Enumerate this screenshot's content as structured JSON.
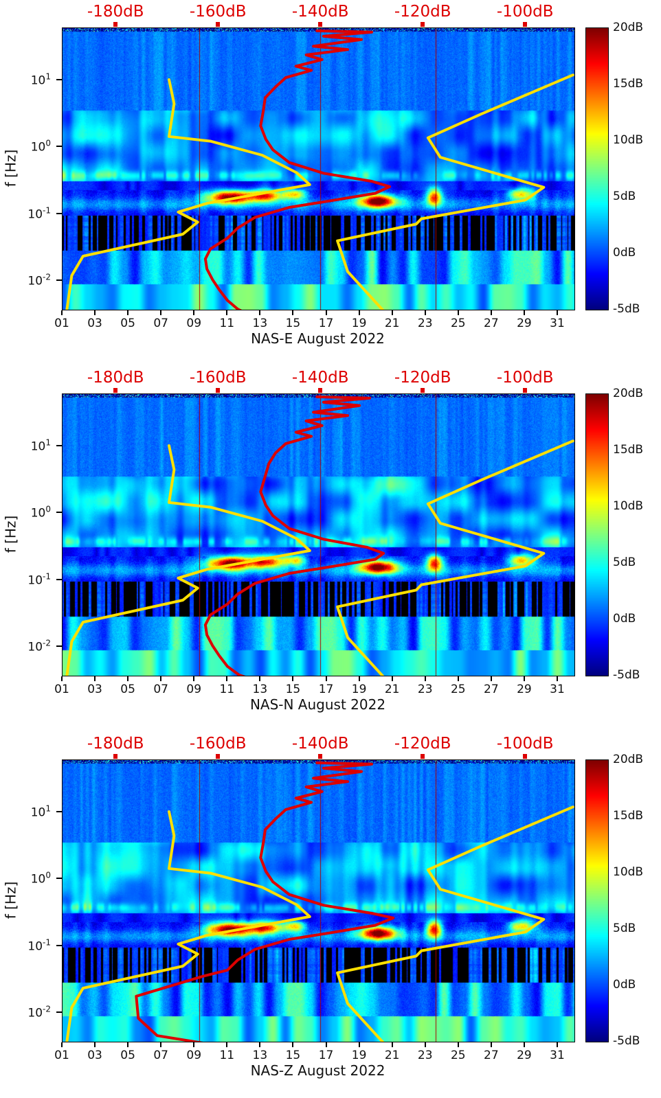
{
  "top_axis": {
    "labels": [
      "-180dB",
      "-160dB",
      "-140dB",
      "-120dB",
      "-100dB"
    ],
    "tick_db": [
      -180,
      -160,
      -140,
      -120,
      -100
    ],
    "color": "#dd0000",
    "range_db": [
      -190.5,
      -90.5
    ]
  },
  "freq_axis": {
    "label": "f [Hz]",
    "ticks": [
      {
        "base": "10",
        "exp": "1",
        "logf": 1
      },
      {
        "base": "10",
        "exp": "0",
        "logf": 0
      },
      {
        "base": "10",
        "exp": "-1",
        "logf": -1
      },
      {
        "base": "10",
        "exp": "-2",
        "logf": -2
      }
    ],
    "log10_range": [
      -2.43,
      1.78
    ]
  },
  "time_axis": {
    "tick_labels": [
      "01",
      "03",
      "05",
      "07",
      "09",
      "11",
      "13",
      "15",
      "17",
      "19",
      "21",
      "23",
      "25",
      "27",
      "29",
      "31"
    ],
    "tick_days": [
      1,
      3,
      5,
      7,
      9,
      11,
      13,
      15,
      17,
      19,
      21,
      23,
      25,
      27,
      29,
      31
    ],
    "range_days": [
      1,
      32
    ]
  },
  "colorbar": {
    "tick_labels": [
      "20dB",
      "15dB",
      "10dB",
      "5dB",
      "0dB",
      "-5dB"
    ],
    "tick_values": [
      20,
      15,
      10,
      5,
      0,
      -5
    ],
    "range_db": [
      -5,
      20
    ]
  },
  "chart_data": {
    "type": "heatmap",
    "x_axis": {
      "range_days": [
        1,
        32
      ],
      "month": "August 2022"
    },
    "y_axis": {
      "label": "f [Hz]",
      "scale": "log",
      "range_hz": [
        0.0037,
        60
      ]
    },
    "color_axis": {
      "range_db": [
        -5,
        20
      ],
      "colormap": "jet"
    },
    "psd_overlay_axis": {
      "range_db": [
        -190.5,
        -90.5
      ],
      "tick_db": [
        -180,
        -160,
        -140,
        -120,
        -100
      ]
    },
    "data_gap_days": [
      9.3,
      16.6,
      23.6
    ],
    "hotspots": [
      {
        "day": 11.1,
        "log10_f": -0.74,
        "amp_db": 21,
        "sigma_days": 1.4,
        "sigma_log10f": 0.1
      },
      {
        "day": 13.3,
        "log10_f": -0.72,
        "amp_db": 17,
        "sigma_days": 1.0,
        "sigma_log10f": 0.09
      },
      {
        "day": 15.0,
        "log10_f": -0.7,
        "amp_db": 12,
        "sigma_days": 0.7,
        "sigma_log10f": 0.08
      },
      {
        "day": 20.1,
        "log10_f": -0.8,
        "amp_db": 21,
        "sigma_days": 1.1,
        "sigma_log10f": 0.1
      },
      {
        "day": 23.5,
        "log10_f": -0.74,
        "amp_db": 17,
        "sigma_days": 0.45,
        "sigma_log10f": 0.13
      },
      {
        "day": 28.8,
        "log10_f": -0.7,
        "amp_db": 13,
        "sigma_days": 0.8,
        "sigma_log10f": 0.09
      }
    ],
    "noise_models": {
      "low_model_yellow_db_log10f": [
        [
          -189.8,
          -2.51
        ],
        [
          -188.7,
          -1.92
        ],
        [
          -186.5,
          -1.63
        ],
        [
          -167.0,
          -1.3
        ],
        [
          -164.1,
          -1.12
        ],
        [
          -167.9,
          -0.97
        ],
        [
          -162.3,
          -0.84
        ],
        [
          -142.2,
          -0.56
        ],
        [
          -144.8,
          -0.38
        ],
        [
          -151.5,
          -0.12
        ],
        [
          -161.6,
          0.09
        ],
        [
          -169.7,
          0.16
        ],
        [
          -168.7,
          0.65
        ],
        [
          -169.7,
          1.01
        ]
      ],
      "high_model_yellow_db_log10f": [
        [
          -127.4,
          -2.48
        ],
        [
          -134.8,
          -1.86
        ],
        [
          -136.8,
          -1.4
        ],
        [
          -121.4,
          -1.15
        ],
        [
          -120.4,
          -1.07
        ],
        [
          -100.1,
          -0.79
        ],
        [
          -96.5,
          -0.6
        ],
        [
          -116.7,
          -0.15
        ],
        [
          -119.1,
          0.14
        ],
        [
          -108.6,
          0.5
        ],
        [
          -90.8,
          1.08
        ]
      ]
    },
    "panels": [
      {
        "title": "NAS-E August 2022",
        "median_red_db_log10f": [
          [
            -140.8,
            1.74
          ],
          [
            -130.1,
            1.72
          ],
          [
            -139.5,
            1.66
          ],
          [
            -132.1,
            1.61
          ],
          [
            -141.5,
            1.51
          ],
          [
            -134.8,
            1.46
          ],
          [
            -142.9,
            1.38
          ],
          [
            -139.8,
            1.31
          ],
          [
            -144.9,
            1.21
          ],
          [
            -141.9,
            1.15
          ],
          [
            -146.9,
            1.04
          ],
          [
            -148.9,
            0.9
          ],
          [
            -150.9,
            0.74
          ],
          [
            -151.3,
            0.53
          ],
          [
            -151.8,
            0.32
          ],
          [
            -150.8,
            0.12
          ],
          [
            -149.4,
            -0.04
          ],
          [
            -146.2,
            -0.23
          ],
          [
            -139.5,
            -0.39
          ],
          [
            -130.1,
            -0.51
          ],
          [
            -126.6,
            -0.59
          ],
          [
            -129.4,
            -0.69
          ],
          [
            -138.1,
            -0.8
          ],
          [
            -146.2,
            -0.9
          ],
          [
            -152.9,
            -1.05
          ],
          [
            -156.3,
            -1.21
          ],
          [
            -158.3,
            -1.36
          ],
          [
            -161.6,
            -1.52
          ],
          [
            -162.6,
            -1.67
          ],
          [
            -162.3,
            -1.82
          ],
          [
            -161.2,
            -1.98
          ],
          [
            -159.9,
            -2.13
          ],
          [
            -158.3,
            -2.29
          ],
          [
            -156.3,
            -2.42
          ],
          [
            -154.0,
            -2.51
          ]
        ]
      },
      {
        "title": "NAS-N August 2022",
        "median_red_db_log10f": [
          [
            -140.8,
            1.74
          ],
          [
            -130.5,
            1.72
          ],
          [
            -139.5,
            1.66
          ],
          [
            -132.5,
            1.61
          ],
          [
            -141.5,
            1.51
          ],
          [
            -134.8,
            1.46
          ],
          [
            -142.9,
            1.38
          ],
          [
            -139.8,
            1.31
          ],
          [
            -144.9,
            1.21
          ],
          [
            -141.9,
            1.15
          ],
          [
            -146.9,
            1.04
          ],
          [
            -148.9,
            0.9
          ],
          [
            -150.2,
            0.74
          ],
          [
            -151.0,
            0.53
          ],
          [
            -151.8,
            0.32
          ],
          [
            -150.8,
            0.12
          ],
          [
            -149.4,
            -0.04
          ],
          [
            -146.2,
            -0.23
          ],
          [
            -139.5,
            -0.39
          ],
          [
            -131.0,
            -0.51
          ],
          [
            -127.8,
            -0.6
          ],
          [
            -129.4,
            -0.69
          ],
          [
            -138.1,
            -0.8
          ],
          [
            -146.2,
            -0.9
          ],
          [
            -152.9,
            -1.05
          ],
          [
            -156.3,
            -1.21
          ],
          [
            -158.3,
            -1.36
          ],
          [
            -161.6,
            -1.52
          ],
          [
            -162.6,
            -1.67
          ],
          [
            -162.3,
            -1.82
          ],
          [
            -161.2,
            -1.98
          ],
          [
            -159.9,
            -2.13
          ],
          [
            -158.3,
            -2.29
          ],
          [
            -156.0,
            -2.42
          ],
          [
            -152.5,
            -2.51
          ]
        ]
      },
      {
        "title": "NAS-Z August 2022",
        "median_red_db_log10f": [
          [
            -140.8,
            1.74
          ],
          [
            -130.1,
            1.72
          ],
          [
            -139.5,
            1.66
          ],
          [
            -132.1,
            1.61
          ],
          [
            -141.5,
            1.51
          ],
          [
            -134.8,
            1.46
          ],
          [
            -142.9,
            1.38
          ],
          [
            -139.8,
            1.31
          ],
          [
            -144.9,
            1.21
          ],
          [
            -141.9,
            1.15
          ],
          [
            -146.9,
            1.04
          ],
          [
            -148.9,
            0.9
          ],
          [
            -150.9,
            0.74
          ],
          [
            -151.3,
            0.53
          ],
          [
            -151.8,
            0.32
          ],
          [
            -150.8,
            0.12
          ],
          [
            -149.4,
            -0.04
          ],
          [
            -146.2,
            -0.23
          ],
          [
            -139.5,
            -0.39
          ],
          [
            -130.1,
            -0.51
          ],
          [
            -125.9,
            -0.58
          ],
          [
            -129.4,
            -0.69
          ],
          [
            -138.1,
            -0.8
          ],
          [
            -146.2,
            -0.9
          ],
          [
            -152.9,
            -1.05
          ],
          [
            -156.3,
            -1.21
          ],
          [
            -158.3,
            -1.36
          ],
          [
            -163.0,
            -1.45
          ],
          [
            -170.4,
            -1.62
          ],
          [
            -176.1,
            -1.75
          ],
          [
            -175.7,
            -2.08
          ],
          [
            -172.0,
            -2.34
          ],
          [
            -162.3,
            -2.46
          ],
          [
            -156.3,
            -2.52
          ]
        ]
      }
    ]
  }
}
